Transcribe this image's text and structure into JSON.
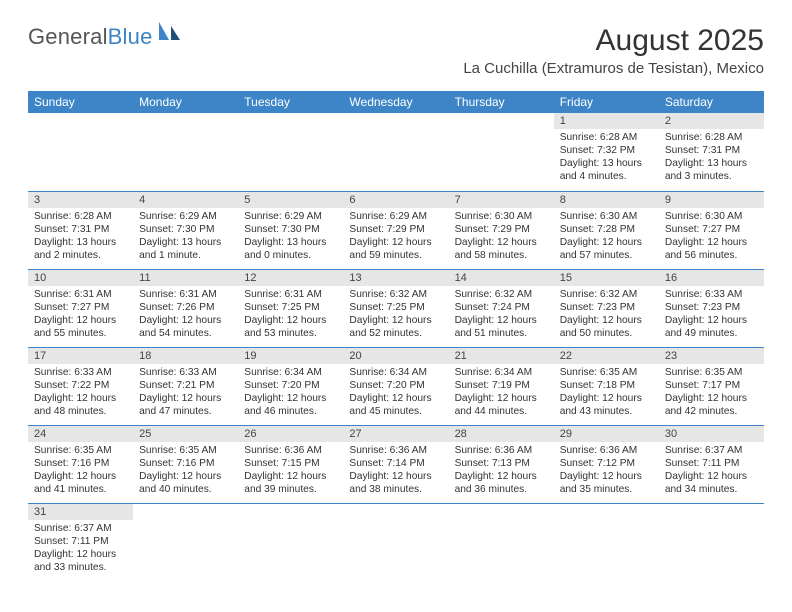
{
  "logo": {
    "text1": "General",
    "text2": "Blue"
  },
  "title": "August 2025",
  "location": "La Cuchilla (Extramuros de Tesistan), Mexico",
  "colors": {
    "header_bg": "#3d85c6",
    "header_fg": "#ffffff",
    "daynum_bg": "#e6e6e6",
    "row_divider": "#3d85c6",
    "text": "#333333",
    "logo_blue": "#3d85c6",
    "logo_grey": "#555555"
  },
  "weekdays": [
    "Sunday",
    "Monday",
    "Tuesday",
    "Wednesday",
    "Thursday",
    "Friday",
    "Saturday"
  ],
  "cells": [
    {
      "empty": true
    },
    {
      "empty": true
    },
    {
      "empty": true
    },
    {
      "empty": true
    },
    {
      "empty": true
    },
    {
      "num": "1",
      "sunrise": "Sunrise: 6:28 AM",
      "sunset": "Sunset: 7:32 PM",
      "daylight": "Daylight: 13 hours and 4 minutes."
    },
    {
      "num": "2",
      "sunrise": "Sunrise: 6:28 AM",
      "sunset": "Sunset: 7:31 PM",
      "daylight": "Daylight: 13 hours and 3 minutes."
    },
    {
      "num": "3",
      "sunrise": "Sunrise: 6:28 AM",
      "sunset": "Sunset: 7:31 PM",
      "daylight": "Daylight: 13 hours and 2 minutes."
    },
    {
      "num": "4",
      "sunrise": "Sunrise: 6:29 AM",
      "sunset": "Sunset: 7:30 PM",
      "daylight": "Daylight: 13 hours and 1 minute."
    },
    {
      "num": "5",
      "sunrise": "Sunrise: 6:29 AM",
      "sunset": "Sunset: 7:30 PM",
      "daylight": "Daylight: 13 hours and 0 minutes."
    },
    {
      "num": "6",
      "sunrise": "Sunrise: 6:29 AM",
      "sunset": "Sunset: 7:29 PM",
      "daylight": "Daylight: 12 hours and 59 minutes."
    },
    {
      "num": "7",
      "sunrise": "Sunrise: 6:30 AM",
      "sunset": "Sunset: 7:29 PM",
      "daylight": "Daylight: 12 hours and 58 minutes."
    },
    {
      "num": "8",
      "sunrise": "Sunrise: 6:30 AM",
      "sunset": "Sunset: 7:28 PM",
      "daylight": "Daylight: 12 hours and 57 minutes."
    },
    {
      "num": "9",
      "sunrise": "Sunrise: 6:30 AM",
      "sunset": "Sunset: 7:27 PM",
      "daylight": "Daylight: 12 hours and 56 minutes."
    },
    {
      "num": "10",
      "sunrise": "Sunrise: 6:31 AM",
      "sunset": "Sunset: 7:27 PM",
      "daylight": "Daylight: 12 hours and 55 minutes."
    },
    {
      "num": "11",
      "sunrise": "Sunrise: 6:31 AM",
      "sunset": "Sunset: 7:26 PM",
      "daylight": "Daylight: 12 hours and 54 minutes."
    },
    {
      "num": "12",
      "sunrise": "Sunrise: 6:31 AM",
      "sunset": "Sunset: 7:25 PM",
      "daylight": "Daylight: 12 hours and 53 minutes."
    },
    {
      "num": "13",
      "sunrise": "Sunrise: 6:32 AM",
      "sunset": "Sunset: 7:25 PM",
      "daylight": "Daylight: 12 hours and 52 minutes."
    },
    {
      "num": "14",
      "sunrise": "Sunrise: 6:32 AM",
      "sunset": "Sunset: 7:24 PM",
      "daylight": "Daylight: 12 hours and 51 minutes."
    },
    {
      "num": "15",
      "sunrise": "Sunrise: 6:32 AM",
      "sunset": "Sunset: 7:23 PM",
      "daylight": "Daylight: 12 hours and 50 minutes."
    },
    {
      "num": "16",
      "sunrise": "Sunrise: 6:33 AM",
      "sunset": "Sunset: 7:23 PM",
      "daylight": "Daylight: 12 hours and 49 minutes."
    },
    {
      "num": "17",
      "sunrise": "Sunrise: 6:33 AM",
      "sunset": "Sunset: 7:22 PM",
      "daylight": "Daylight: 12 hours and 48 minutes."
    },
    {
      "num": "18",
      "sunrise": "Sunrise: 6:33 AM",
      "sunset": "Sunset: 7:21 PM",
      "daylight": "Daylight: 12 hours and 47 minutes."
    },
    {
      "num": "19",
      "sunrise": "Sunrise: 6:34 AM",
      "sunset": "Sunset: 7:20 PM",
      "daylight": "Daylight: 12 hours and 46 minutes."
    },
    {
      "num": "20",
      "sunrise": "Sunrise: 6:34 AM",
      "sunset": "Sunset: 7:20 PM",
      "daylight": "Daylight: 12 hours and 45 minutes."
    },
    {
      "num": "21",
      "sunrise": "Sunrise: 6:34 AM",
      "sunset": "Sunset: 7:19 PM",
      "daylight": "Daylight: 12 hours and 44 minutes."
    },
    {
      "num": "22",
      "sunrise": "Sunrise: 6:35 AM",
      "sunset": "Sunset: 7:18 PM",
      "daylight": "Daylight: 12 hours and 43 minutes."
    },
    {
      "num": "23",
      "sunrise": "Sunrise: 6:35 AM",
      "sunset": "Sunset: 7:17 PM",
      "daylight": "Daylight: 12 hours and 42 minutes."
    },
    {
      "num": "24",
      "sunrise": "Sunrise: 6:35 AM",
      "sunset": "Sunset: 7:16 PM",
      "daylight": "Daylight: 12 hours and 41 minutes."
    },
    {
      "num": "25",
      "sunrise": "Sunrise: 6:35 AM",
      "sunset": "Sunset: 7:16 PM",
      "daylight": "Daylight: 12 hours and 40 minutes."
    },
    {
      "num": "26",
      "sunrise": "Sunrise: 6:36 AM",
      "sunset": "Sunset: 7:15 PM",
      "daylight": "Daylight: 12 hours and 39 minutes."
    },
    {
      "num": "27",
      "sunrise": "Sunrise: 6:36 AM",
      "sunset": "Sunset: 7:14 PM",
      "daylight": "Daylight: 12 hours and 38 minutes."
    },
    {
      "num": "28",
      "sunrise": "Sunrise: 6:36 AM",
      "sunset": "Sunset: 7:13 PM",
      "daylight": "Daylight: 12 hours and 36 minutes."
    },
    {
      "num": "29",
      "sunrise": "Sunrise: 6:36 AM",
      "sunset": "Sunset: 7:12 PM",
      "daylight": "Daylight: 12 hours and 35 minutes."
    },
    {
      "num": "30",
      "sunrise": "Sunrise: 6:37 AM",
      "sunset": "Sunset: 7:11 PM",
      "daylight": "Daylight: 12 hours and 34 minutes."
    },
    {
      "num": "31",
      "sunrise": "Sunrise: 6:37 AM",
      "sunset": "Sunset: 7:11 PM",
      "daylight": "Daylight: 12 hours and 33 minutes."
    },
    {
      "empty": true
    },
    {
      "empty": true
    },
    {
      "empty": true
    },
    {
      "empty": true
    },
    {
      "empty": true
    },
    {
      "empty": true
    }
  ]
}
